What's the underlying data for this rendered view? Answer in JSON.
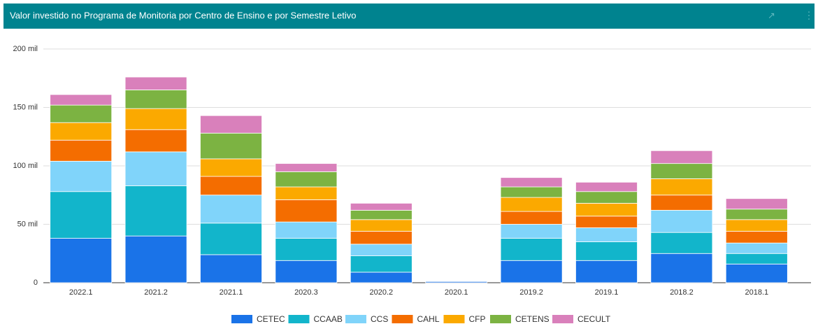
{
  "chart_data": {
    "type": "stacked_bar",
    "title": "Valor investido no Programa de Monitoria por Centro de Ensino e por Semestre Letivo",
    "categories": [
      "2022.1",
      "2021.2",
      "2021.1",
      "2020.3",
      "2020.2",
      "2020.1",
      "2019.2",
      "2019.1",
      "2018.2",
      "2018.1"
    ],
    "series": [
      {
        "name": "CETEC",
        "color": "#1a73e8",
        "values": [
          38,
          40,
          24,
          19,
          9,
          1,
          19,
          19,
          25,
          16
        ]
      },
      {
        "name": "CCAAB",
        "color": "#12b5cb",
        "values": [
          40,
          43,
          27,
          19,
          14,
          0,
          19,
          16,
          18,
          9
        ]
      },
      {
        "name": "CCS",
        "color": "#80d4fa",
        "values": [
          26,
          29,
          24,
          14,
          10,
          0,
          12,
          12,
          19,
          9
        ]
      },
      {
        "name": "CAHL",
        "color": "#f46d00",
        "values": [
          18,
          19,
          16,
          19,
          11,
          0,
          11,
          10,
          13,
          10
        ]
      },
      {
        "name": "CFP",
        "color": "#fba900",
        "values": [
          15,
          18,
          15,
          11,
          10,
          0,
          12,
          11,
          14,
          10
        ]
      },
      {
        "name": "CETENS",
        "color": "#7cb342",
        "values": [
          15,
          16,
          22,
          13,
          8,
          0,
          9,
          10,
          13,
          9
        ]
      },
      {
        "name": "CECULT",
        "color": "#d980bb",
        "values": [
          9,
          11,
          15,
          7,
          6,
          0,
          8,
          8,
          11,
          9
        ]
      }
    ],
    "ylim": [
      0,
      200
    ],
    "yticks": [
      0,
      {
        "value": 50,
        "label": "50 mil"
      },
      {
        "value": 100,
        "label": "100 mil"
      },
      {
        "value": 150,
        "label": "150 mil"
      },
      {
        "value": 200,
        "label": "200 mil"
      }
    ],
    "grid": true,
    "legend": "bottom"
  }
}
